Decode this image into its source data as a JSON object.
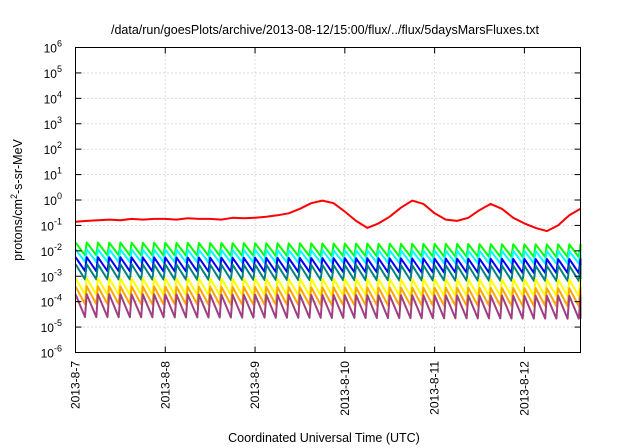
{
  "chart_data": {
    "type": "line",
    "title": "/data/run/goesPlots/archive/2013-08-12/15:00/flux/../flux/5daysMarsFluxes.txt",
    "xlabel": "Coordinated Universal Time (UTC)",
    "ylabel": "protons/cm²-s-sr-MeV",
    "ylabel_parts": {
      "pre": "protons/cm",
      "sup": "2",
      "post": "-s-sr-MeV"
    },
    "yscale": "log",
    "ylim": [
      1e-06,
      1000000.0
    ],
    "xlim": [
      "2013-08-07T00:00",
      "2013-08-12T15:00"
    ],
    "grid": true,
    "x_ticks": [
      "2013-8-7",
      "2013-8-8",
      "2013-8-9",
      "2013-8-10",
      "2013-8-11",
      "2013-8-12"
    ],
    "y_ticks": [
      {
        "base": "10",
        "exp": "-6"
      },
      {
        "base": "10",
        "exp": "-5"
      },
      {
        "base": "10",
        "exp": "-4"
      },
      {
        "base": "10",
        "exp": "-3"
      },
      {
        "base": "10",
        "exp": "-2"
      },
      {
        "base": "10",
        "exp": "-1"
      },
      {
        "base": "10",
        "exp": "0"
      },
      {
        "base": "10",
        "exp": "1"
      },
      {
        "base": "10",
        "exp": "2"
      },
      {
        "base": "10",
        "exp": "3"
      },
      {
        "base": "10",
        "exp": "4"
      },
      {
        "base": "10",
        "exp": "5"
      },
      {
        "base": "10",
        "exp": "6"
      }
    ],
    "series": [
      {
        "color": "#ff0000",
        "x": [
          "2013-08-07T00:00",
          "2013-08-07T03:00",
          "2013-08-07T06:00",
          "2013-08-07T09:00",
          "2013-08-07T12:00",
          "2013-08-07T15:00",
          "2013-08-07T18:00",
          "2013-08-07T21:00",
          "2013-08-08T00:00",
          "2013-08-08T03:00",
          "2013-08-08T06:00",
          "2013-08-08T09:00",
          "2013-08-08T12:00",
          "2013-08-08T15:00",
          "2013-08-08T18:00",
          "2013-08-08T21:00",
          "2013-08-09T00:00",
          "2013-08-09T03:00",
          "2013-08-09T06:00",
          "2013-08-09T09:00",
          "2013-08-09T12:00",
          "2013-08-09T15:00",
          "2013-08-09T18:00",
          "2013-08-09T21:00",
          "2013-08-10T00:00",
          "2013-08-10T03:00",
          "2013-08-10T06:00",
          "2013-08-10T09:00",
          "2013-08-10T12:00",
          "2013-08-10T15:00",
          "2013-08-10T18:00",
          "2013-08-10T21:00",
          "2013-08-11T00:00",
          "2013-08-11T03:00",
          "2013-08-11T06:00",
          "2013-08-11T09:00",
          "2013-08-11T12:00",
          "2013-08-11T15:00",
          "2013-08-11T18:00",
          "2013-08-11T21:00",
          "2013-08-12T00:00",
          "2013-08-12T03:00",
          "2013-08-12T06:00",
          "2013-08-12T09:00",
          "2013-08-12T12:00",
          "2013-08-12T15:00"
        ],
        "y": [
          0.14,
          0.15,
          0.16,
          0.17,
          0.16,
          0.18,
          0.17,
          0.18,
          0.18,
          0.17,
          0.19,
          0.18,
          0.18,
          0.17,
          0.2,
          0.19,
          0.2,
          0.22,
          0.25,
          0.3,
          0.45,
          0.75,
          0.95,
          0.75,
          0.35,
          0.15,
          0.08,
          0.12,
          0.22,
          0.5,
          0.95,
          0.7,
          0.3,
          0.17,
          0.15,
          0.2,
          0.4,
          0.7,
          0.45,
          0.2,
          0.12,
          0.08,
          0.06,
          0.1,
          0.25,
          0.45
        ]
      },
      {
        "color": "#00ff00",
        "x": [
          "2013-08-07T00:00",
          "2013-08-12T15:00"
        ],
        "y": [
          0.012,
          0.01
        ],
        "amplitude": 0.5
      },
      {
        "color": "#00ffff",
        "x": [
          "2013-08-07T00:00",
          "2013-08-12T15:00"
        ],
        "y": [
          0.0065,
          0.0055
        ],
        "amplitude": 0.5
      },
      {
        "color": "#0000ff",
        "x": [
          "2013-08-07T00:00",
          "2013-08-12T15:00"
        ],
        "y": [
          0.003,
          0.0025
        ],
        "amplitude": 0.55
      },
      {
        "color": "#008080",
        "x": [
          "2013-08-07T00:00",
          "2013-08-12T15:00"
        ],
        "y": [
          0.0015,
          0.0013
        ],
        "amplitude": 0.6
      },
      {
        "color": "#ffff00",
        "x": [
          "2013-08-07T00:00",
          "2013-08-12T15:00"
        ],
        "y": [
          0.0004,
          0.00035
        ],
        "amplitude": 0.65
      },
      {
        "color": "#ffa500",
        "x": [
          "2013-08-07T00:00",
          "2013-08-12T15:00"
        ],
        "y": [
          0.00018,
          0.00015
        ],
        "amplitude": 0.7
      },
      {
        "color": "#a04080",
        "x": [
          "2013-08-07T00:00",
          "2013-08-12T15:00"
        ],
        "y": [
          7e-05,
          6e-05
        ],
        "amplitude": 0.9
      }
    ]
  }
}
